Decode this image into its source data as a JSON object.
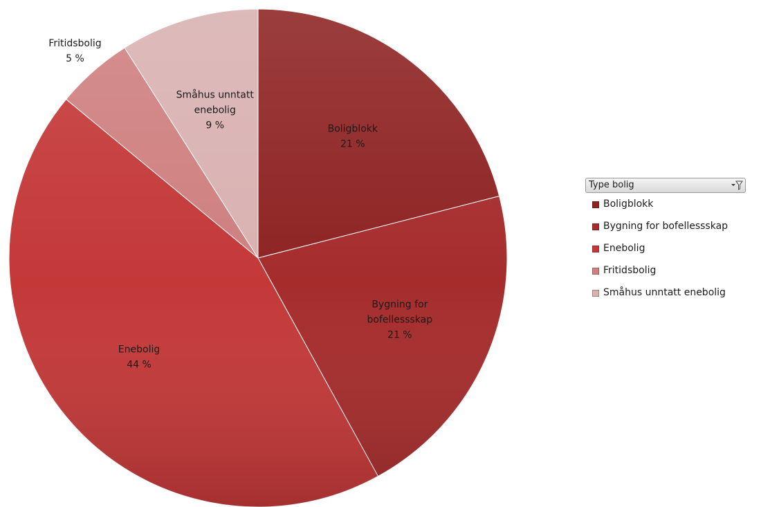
{
  "chart_data": {
    "type": "pie",
    "title": "",
    "categories": [
      "Boligblokk",
      "Bygning for bofellessskap",
      "Enebolig",
      "Fritidsbolig",
      "Småhus unntatt enebolig"
    ],
    "values": [
      21,
      21,
      44,
      5,
      9
    ],
    "data_labels": [
      "21 %",
      "21 %",
      "44 %",
      "5 %",
      "9 %"
    ],
    "label_lines": [
      [
        "Boligblokk",
        "21 %"
      ],
      [
        "Bygning for",
        "bofellessskap",
        "21 %"
      ],
      [
        "Enebolig",
        "44 %"
      ],
      [
        "Fritidsbolig",
        "5 %"
      ],
      [
        "Småhus unntatt",
        "enebolig",
        "9 %"
      ]
    ],
    "colors": [
      "#8e2323",
      "#a62c2c",
      "#c43838",
      "#cf7f7f",
      "#d9b1b1"
    ],
    "start": "12 o'clock",
    "direction": "clockwise",
    "legend": {
      "title": "Type bolig",
      "placement": "right",
      "filter_icon": "filter-dropdown-icon"
    }
  }
}
